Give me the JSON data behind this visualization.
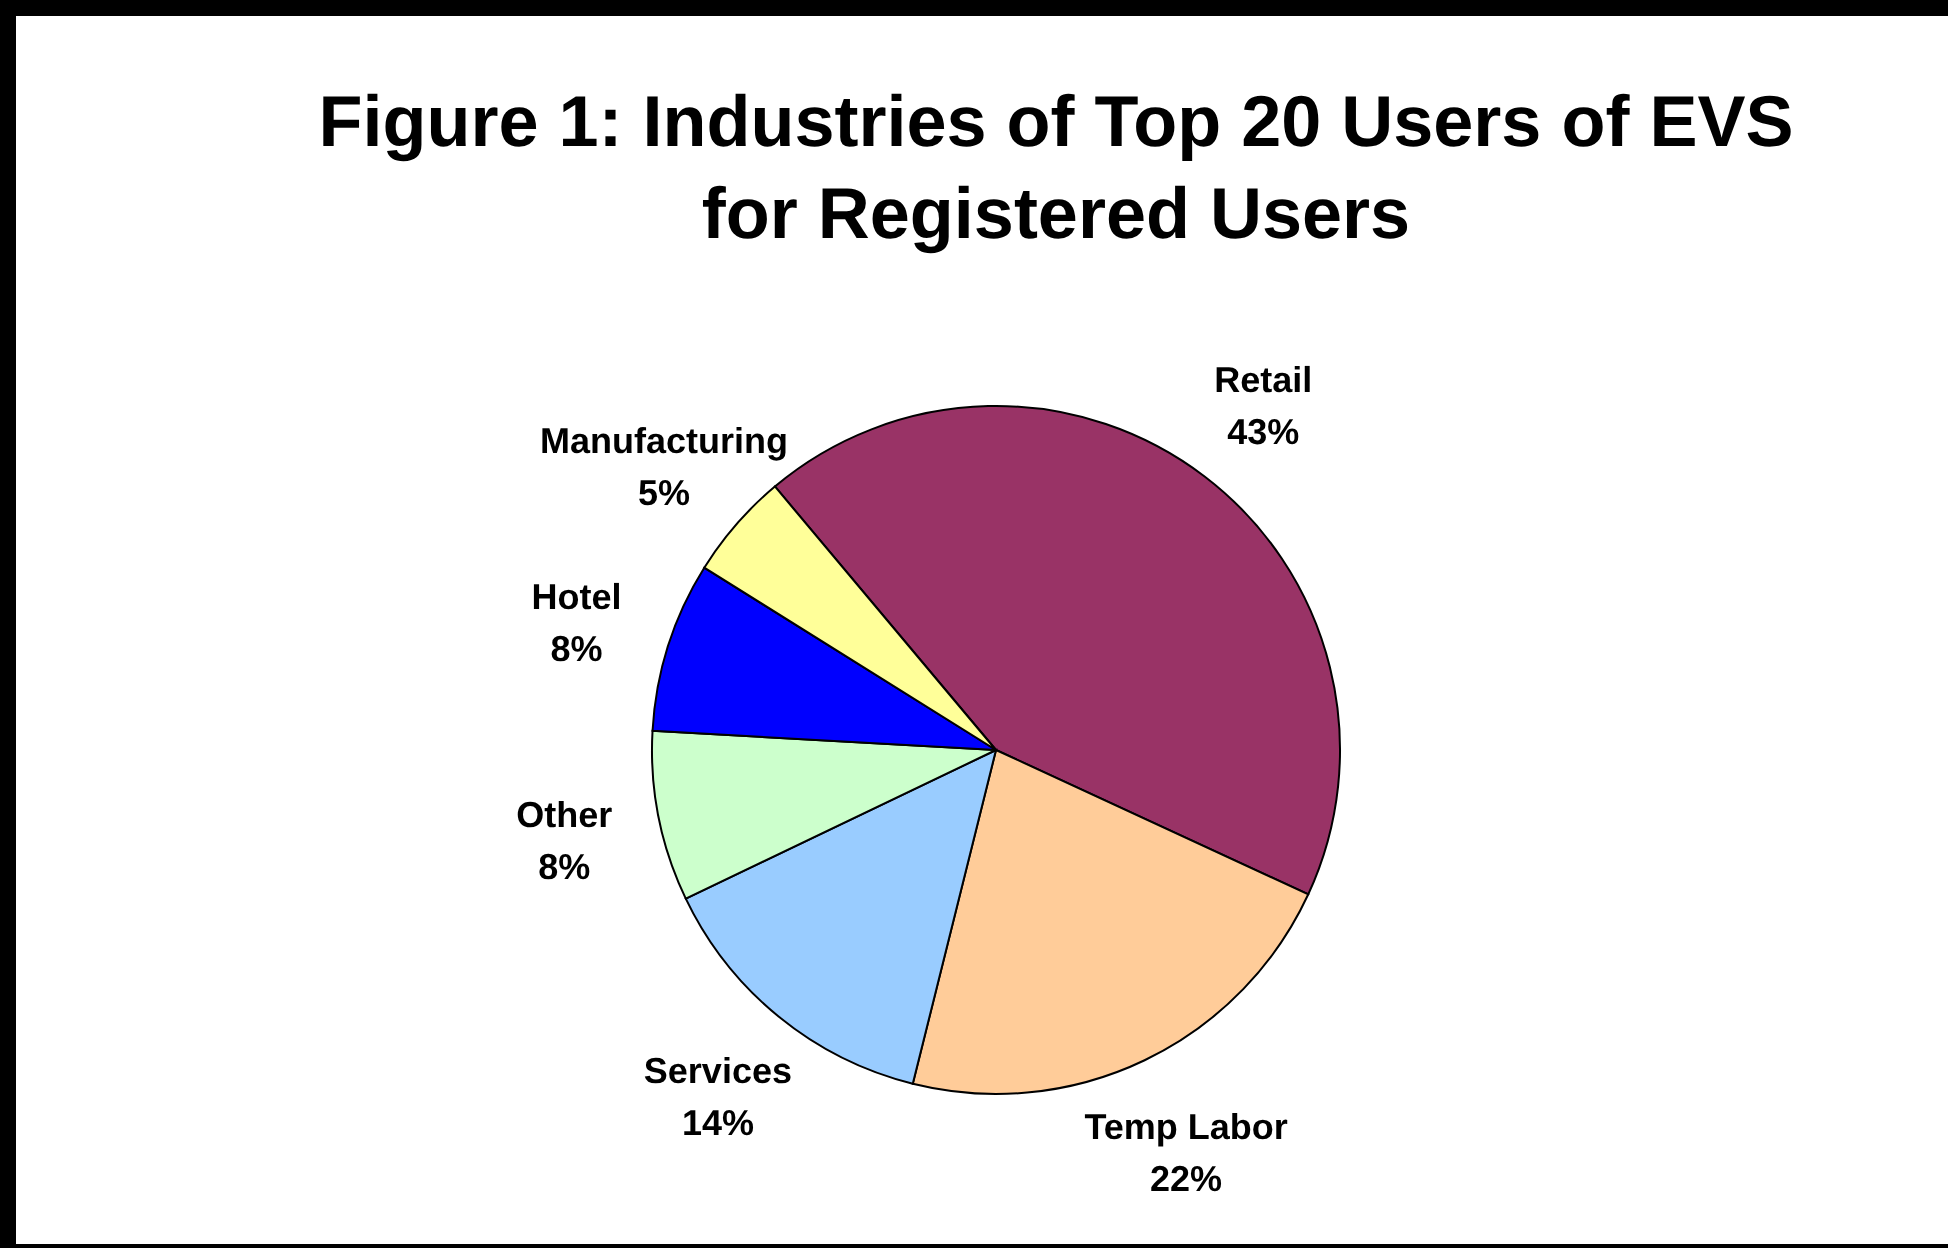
{
  "chart_data": {
    "type": "pie",
    "title": "Figure 1: Industries of Top 20 Users of EVS for Registered Users",
    "categories": [
      "Retail",
      "Temp Labor",
      "Services",
      "Other",
      "Hotel",
      "Manufacturing"
    ],
    "values": [
      43,
      22,
      14,
      8,
      8,
      5
    ],
    "value_labels": [
      "43%",
      "22%",
      "14%",
      "8%",
      "8%",
      "5%"
    ],
    "colors": [
      "#993366",
      "#ffcc99",
      "#99ccff",
      "#ccffcc",
      "#0000ff",
      "#ffff99"
    ],
    "legend": false
  }
}
